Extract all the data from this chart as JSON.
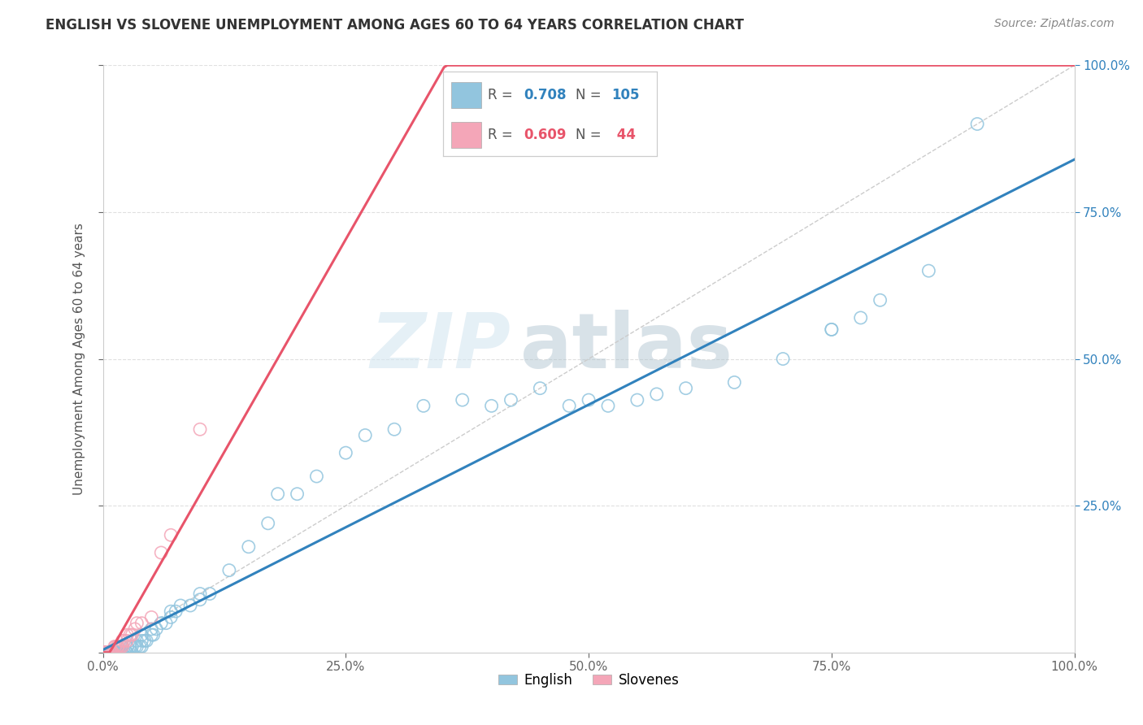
{
  "title": "ENGLISH VS SLOVENE UNEMPLOYMENT AMONG AGES 60 TO 64 YEARS CORRELATION CHART",
  "source": "Source: ZipAtlas.com",
  "ylabel": "Unemployment Among Ages 60 to 64 years",
  "legend_english": "English",
  "legend_slovenes": "Slovenes",
  "english_R": 0.708,
  "english_N": 105,
  "slovene_R": 0.609,
  "slovene_N": 44,
  "english_color": "#92c5de",
  "slovene_color": "#f4a6b8",
  "english_line_color": "#3182bd",
  "slovene_line_color": "#e8546a",
  "watermark_zip": "ZIP",
  "watermark_atlas": "atlas",
  "xlim": [
    0.0,
    1.0
  ],
  "ylim": [
    0.0,
    1.0
  ],
  "grid_color": "#e0e0e0",
  "background_color": "#ffffff",
  "english_x": [
    0.0,
    0.0,
    0.0,
    0.0,
    0.0,
    0.0,
    0.0,
    0.0,
    0.0,
    0.0,
    0.0,
    0.0,
    0.0,
    0.0,
    0.0,
    0.0,
    0.0,
    0.0,
    0.0,
    0.0,
    0.0,
    0.0,
    0.002,
    0.003,
    0.003,
    0.005,
    0.005,
    0.006,
    0.007,
    0.008,
    0.008,
    0.01,
    0.01,
    0.01,
    0.011,
    0.012,
    0.013,
    0.015,
    0.015,
    0.015,
    0.016,
    0.017,
    0.018,
    0.018,
    0.02,
    0.02,
    0.02,
    0.022,
    0.024,
    0.025,
    0.025,
    0.028,
    0.03,
    0.03,
    0.033,
    0.035,
    0.035,
    0.038,
    0.04,
    0.04,
    0.04,
    0.043,
    0.045,
    0.05,
    0.05,
    0.052,
    0.055,
    0.06,
    0.065,
    0.07,
    0.07,
    0.075,
    0.08,
    0.09,
    0.1,
    0.1,
    0.11,
    0.13,
    0.15,
    0.17,
    0.18,
    0.2,
    0.22,
    0.25,
    0.27,
    0.3,
    0.33,
    0.37,
    0.4,
    0.42,
    0.45,
    0.48,
    0.5,
    0.52,
    0.55,
    0.57,
    0.6,
    0.65,
    0.7,
    0.75,
    0.75,
    0.78,
    0.8,
    0.85,
    0.9
  ],
  "english_y": [
    0.0,
    0.0,
    0.0,
    0.0,
    0.0,
    0.0,
    0.0,
    0.0,
    0.0,
    0.0,
    0.0,
    0.0,
    0.0,
    0.0,
    0.0,
    0.0,
    0.0,
    0.0,
    0.0,
    0.0,
    0.0,
    0.0,
    0.0,
    0.0,
    0.0,
    0.0,
    0.0,
    0.0,
    0.0,
    0.0,
    0.0,
    0.0,
    0.0,
    0.0,
    0.0,
    0.0,
    0.0,
    0.0,
    0.0,
    0.0,
    0.0,
    0.0,
    0.0,
    0.0,
    0.0,
    0.0,
    0.01,
    0.0,
    0.0,
    0.0,
    0.01,
    0.01,
    0.0,
    0.01,
    0.01,
    0.01,
    0.02,
    0.01,
    0.01,
    0.02,
    0.03,
    0.02,
    0.02,
    0.03,
    0.04,
    0.03,
    0.04,
    0.05,
    0.05,
    0.06,
    0.07,
    0.07,
    0.08,
    0.08,
    0.09,
    0.1,
    0.1,
    0.14,
    0.18,
    0.22,
    0.27,
    0.27,
    0.3,
    0.34,
    0.37,
    0.38,
    0.42,
    0.43,
    0.42,
    0.43,
    0.45,
    0.42,
    0.43,
    0.42,
    0.43,
    0.44,
    0.45,
    0.46,
    0.5,
    0.55,
    0.55,
    0.57,
    0.6,
    0.65,
    0.9
  ],
  "slovene_x": [
    0.0,
    0.0,
    0.0,
    0.0,
    0.0,
    0.0,
    0.0,
    0.0,
    0.0,
    0.0,
    0.0,
    0.0,
    0.0,
    0.0,
    0.002,
    0.003,
    0.005,
    0.005,
    0.007,
    0.008,
    0.008,
    0.01,
    0.01,
    0.01,
    0.012,
    0.013,
    0.015,
    0.015,
    0.016,
    0.018,
    0.02,
    0.02,
    0.022,
    0.025,
    0.025,
    0.028,
    0.03,
    0.033,
    0.035,
    0.04,
    0.05,
    0.06,
    0.07,
    0.1
  ],
  "slovene_y": [
    0.0,
    0.0,
    0.0,
    0.0,
    0.0,
    0.0,
    0.0,
    0.0,
    0.0,
    0.0,
    0.0,
    0.0,
    0.0,
    0.0,
    0.0,
    0.0,
    0.0,
    0.0,
    0.0,
    0.0,
    0.0,
    0.0,
    0.0,
    0.0,
    0.01,
    0.01,
    0.01,
    0.01,
    0.01,
    0.01,
    0.01,
    0.02,
    0.02,
    0.02,
    0.03,
    0.03,
    0.03,
    0.04,
    0.05,
    0.05,
    0.06,
    0.17,
    0.2,
    0.38
  ]
}
